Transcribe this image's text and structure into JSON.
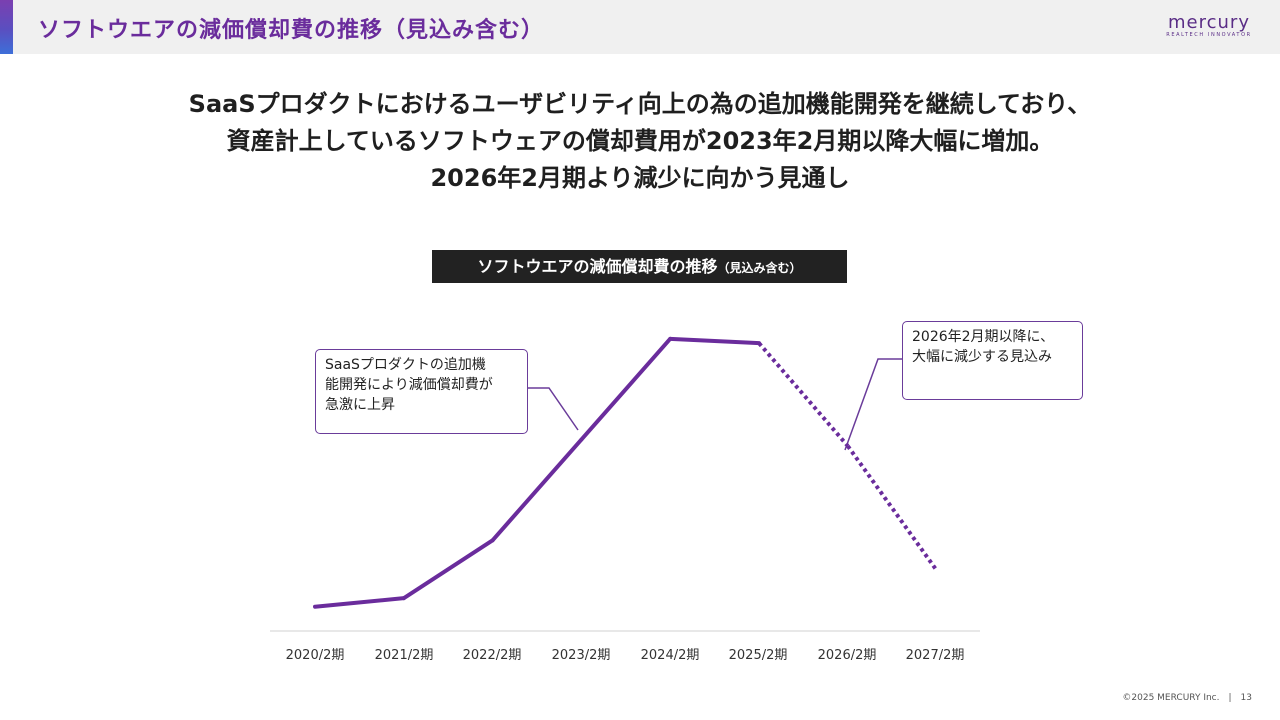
{
  "header": {
    "title": "ソフトウエアの減価償却費の推移（見込み含む）",
    "logo_word": "mercury",
    "logo_tagline": "REALTECH INNOVATOR"
  },
  "headline": {
    "line1": "SaaSプロダクトにおけるユーザビリティ向上の為の追加機能開発を継続しており、",
    "line2": "資産計上しているソフトウェアの償却費用が2023年2月期以降大幅に増加。",
    "line3": "2026年2月期より減少に向かう見通し"
  },
  "chart_title": {
    "main": "ソフトウエアの減価償却費の推移",
    "sub": "（見込み含む）"
  },
  "callouts": {
    "left": [
      "SaaSプロダクトの追加機",
      "能開発により減価償却費が",
      "急激に上昇"
    ],
    "right": [
      "2026年2月期以降に、",
      "大幅に減少する見込み"
    ]
  },
  "chart_data": {
    "type": "line",
    "title": "ソフトウエアの減価償却費の推移（見込み含む）",
    "categories": [
      "2020/2期",
      "2021/2期",
      "2022/2期",
      "2023/2期",
      "2024/2期",
      "2025/2期",
      "2026/2期",
      "2027/2期"
    ],
    "series": [
      {
        "name": "",
        "values": [
          2,
          6,
          33,
          80,
          127,
          125,
          77,
          19
        ],
        "style": [
          "solid",
          "solid",
          "solid",
          "solid",
          "solid",
          "solid",
          "dotted",
          "dotted"
        ]
      }
    ],
    "ylim": [
      0,
      140
    ],
    "y_axis_shown": false,
    "grid": false,
    "legend": "none",
    "line_color": "#6a2c9c",
    "note": ""
  },
  "footer": {
    "copyright": "©2025 MERCURY Inc.",
    "page": "13"
  },
  "colors": {
    "brand_purple": "#6a2c9c",
    "header_bg": "#f0f0f0",
    "title_box_bg": "#222222"
  }
}
